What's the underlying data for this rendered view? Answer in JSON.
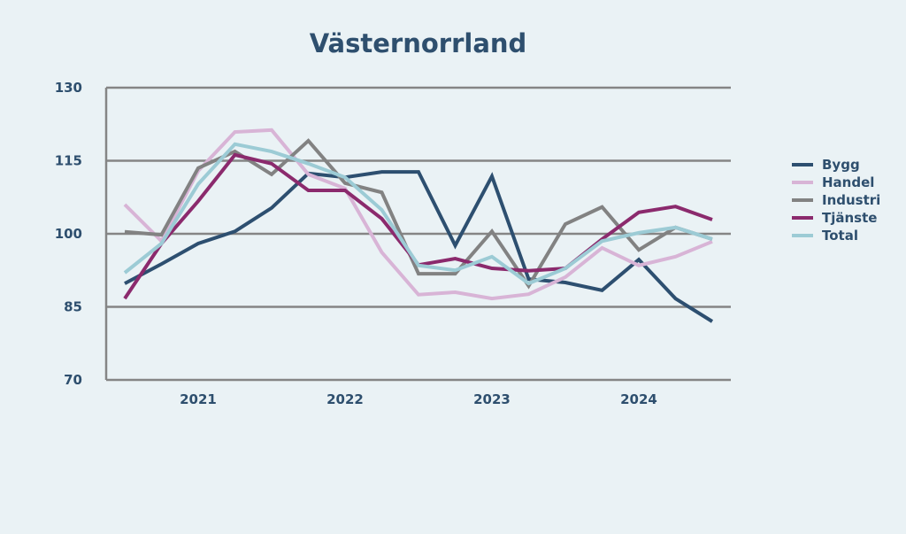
{
  "chart_data": {
    "type": "line",
    "title": "Västernorrland",
    "xlabel": "",
    "ylabel": "",
    "ylim": [
      70,
      130
    ],
    "yticks": [
      70,
      85,
      100,
      115,
      130
    ],
    "x_tick_labels": [
      {
        "index": 2,
        "label": "2021"
      },
      {
        "index": 6,
        "label": "2022"
      },
      {
        "index": 10,
        "label": "2023"
      },
      {
        "index": 14,
        "label": "2024"
      }
    ],
    "grid": "horizontal",
    "legend_placement": "right",
    "series": [
      {
        "name": "Bygg",
        "color": "#2d4f70",
        "values": [
          89.8,
          93.8,
          98.0,
          100.5,
          105.3,
          112.4,
          111.6,
          112.7,
          112.7,
          97.6,
          111.8,
          90.7,
          90.0,
          88.4,
          94.7,
          86.7,
          82.0
        ]
      },
      {
        "name": "Handel",
        "color": "#d8b4d6",
        "values": [
          106.0,
          98.5,
          112.9,
          120.9,
          121.3,
          112.2,
          109.3,
          96.2,
          87.5,
          88.0,
          86.7,
          87.6,
          91.1,
          97.1,
          93.5,
          95.3,
          98.4
        ]
      },
      {
        "name": "Industri",
        "color": "#828282",
        "values": [
          100.4,
          99.8,
          113.5,
          116.9,
          112.2,
          119.1,
          110.4,
          108.5,
          91.8,
          91.8,
          100.5,
          89.3,
          102.0,
          105.5,
          96.7,
          101.3,
          98.9
        ]
      },
      {
        "name": "Tjänste",
        "color": "#8b2a6d",
        "values": [
          86.7,
          98.0,
          106.7,
          116.2,
          114.4,
          108.9,
          108.9,
          103.1,
          93.6,
          94.9,
          92.9,
          92.4,
          92.9,
          98.9,
          104.4,
          105.6,
          102.9
        ]
      },
      {
        "name": "Total",
        "color": "#9ccbd5",
        "values": [
          92.0,
          98.0,
          110.2,
          118.4,
          116.9,
          114.4,
          111.6,
          104.9,
          93.5,
          92.5,
          95.3,
          89.8,
          92.9,
          98.5,
          100.2,
          101.3,
          98.9
        ]
      }
    ]
  }
}
